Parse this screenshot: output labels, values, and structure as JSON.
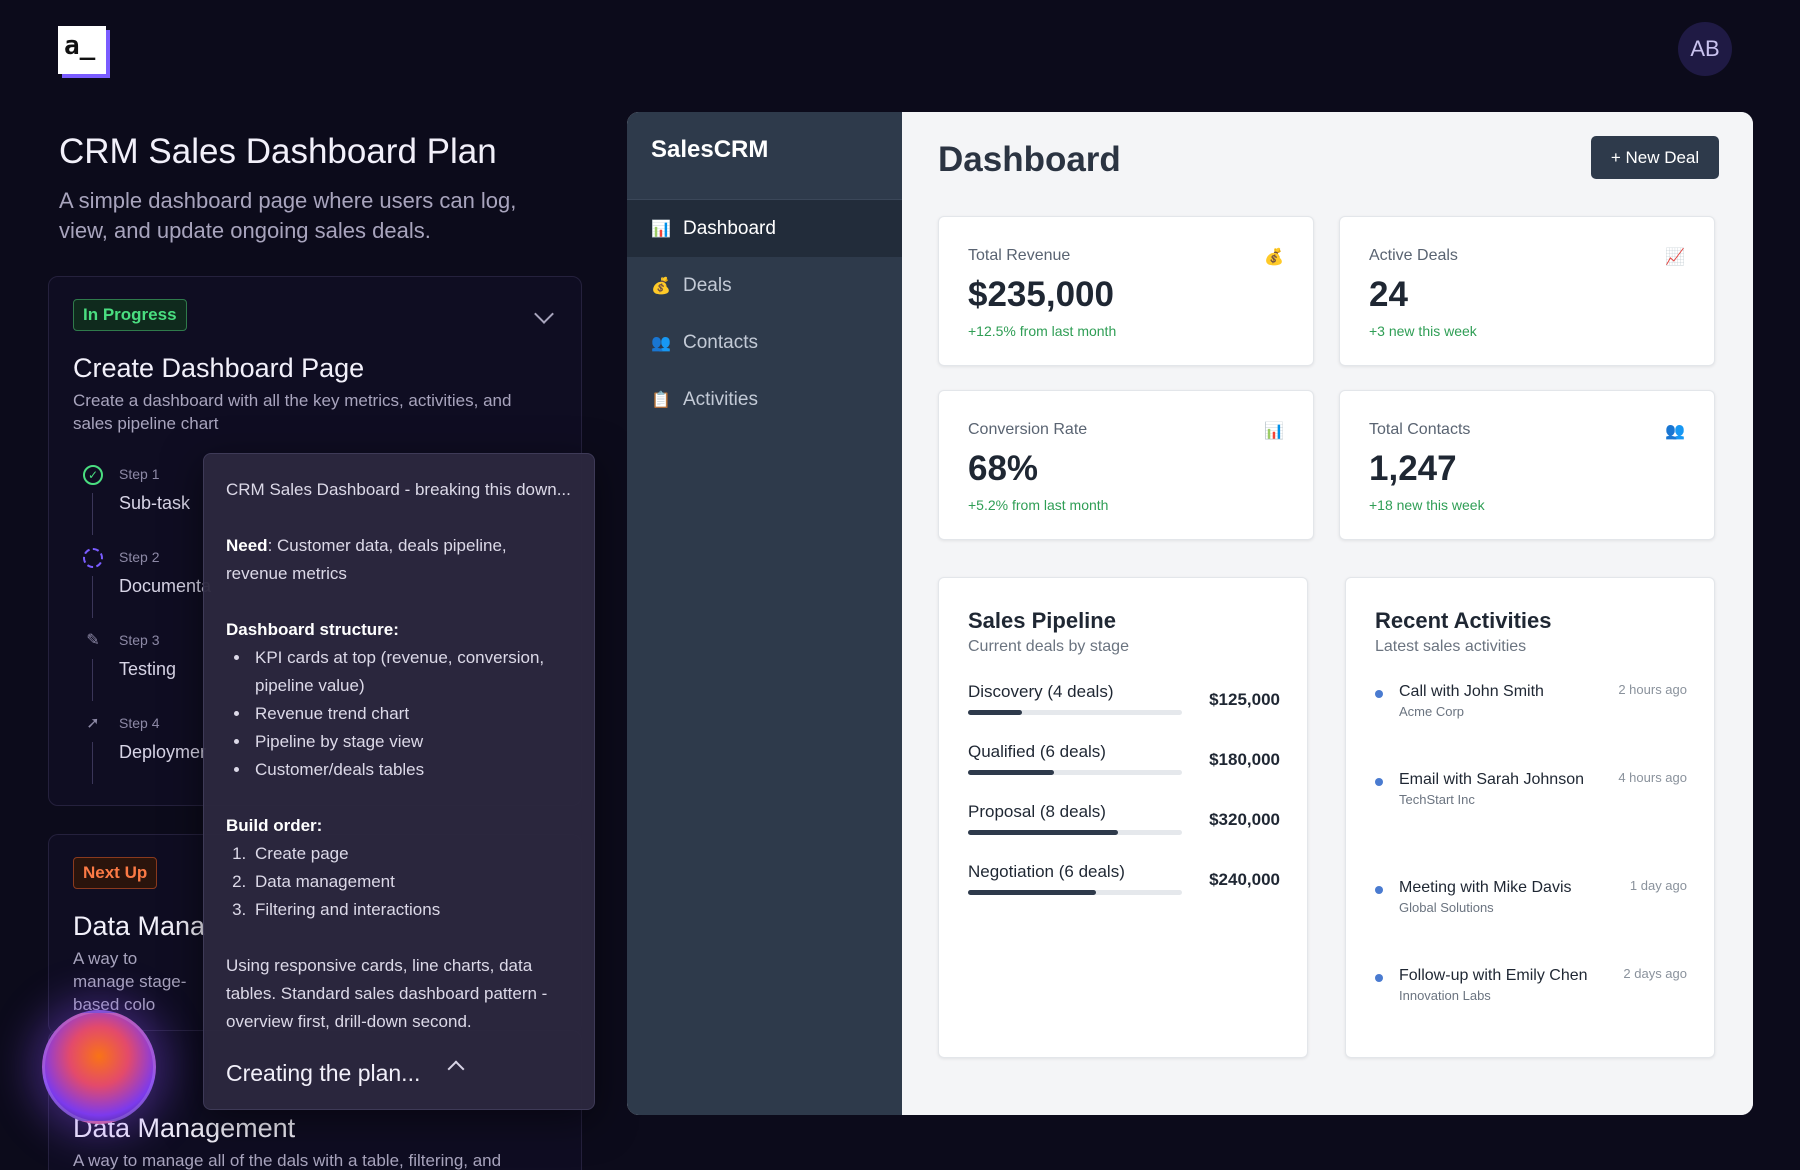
{
  "topbar": {
    "logo": "a_",
    "avatar_initials": "AB"
  },
  "plan": {
    "title": "CRM Sales Dashboard Plan",
    "subtitle": "A simple dashboard page where users can log, view, and update ongoing sales deals.",
    "task1": {
      "badge": "In Progress",
      "title": "Create Dashboard Page",
      "description": "Create a dashboard with all the key metrics, activities, and sales pipeline chart",
      "steps": [
        {
          "label": "Step 1",
          "name": "Sub-task"
        },
        {
          "label": "Step 2",
          "name": "Documenta"
        },
        {
          "label": "Step 3",
          "name": "Testing"
        },
        {
          "label": "Step 4",
          "name": "Deploymer"
        }
      ]
    },
    "task2": {
      "badge": "Next Up",
      "title": "Data Mana",
      "description": "A way to manage stage-based colo"
    },
    "task3": {
      "title": "Data Management",
      "description": "A way to manage all of the dals with a table, filtering, and"
    }
  },
  "thinking": {
    "intro": "CRM Sales Dashboard - breaking this down...",
    "need_label": "Need",
    "need_text": ": Customer data, deals pipeline, revenue metrics",
    "structure_label": "Dashboard structure:",
    "structure_items": [
      "KPI cards at top (revenue, conversion, pipeline value)",
      "Revenue trend chart",
      "Pipeline by stage view",
      "Customer/deals tables"
    ],
    "build_label": "Build order:",
    "build_items": [
      "Create page",
      "Data management",
      "Filtering and interactions"
    ],
    "closing": "Using responsive cards, line charts, data tables. Standard sales dashboard pattern - overview first, drill-down second.",
    "status": "Creating the plan..."
  },
  "crm": {
    "brand": "SalesCRM",
    "nav": [
      {
        "label": "Dashboard",
        "icon": "📊"
      },
      {
        "label": "Deals",
        "icon": "💰"
      },
      {
        "label": "Contacts",
        "icon": "👥"
      },
      {
        "label": "Activities",
        "icon": "📋"
      }
    ],
    "page_title": "Dashboard",
    "new_deal": "+ New Deal",
    "kpis": [
      {
        "label": "Total Revenue",
        "icon": "💰",
        "value": "$235,000",
        "change": "+12.5% from last month"
      },
      {
        "label": "Active Deals",
        "icon": "📈",
        "value": "24",
        "change": "+3 new this week"
      },
      {
        "label": "Conversion Rate",
        "icon": "📊",
        "value": "68%",
        "change": "+5.2% from last month"
      },
      {
        "label": "Total Contacts",
        "icon": "👥",
        "value": "1,247",
        "change": "+18 new this week"
      }
    ],
    "pipeline": {
      "title": "Sales Pipeline",
      "subtitle": "Current deals by stage",
      "stages": [
        {
          "name": "Discovery (4 deals)",
          "value": "$125,000",
          "progress": 0.25
        },
        {
          "name": "Qualified (6 deals)",
          "value": "$180,000",
          "progress": 0.4
        },
        {
          "name": "Proposal (8 deals)",
          "value": "$320,000",
          "progress": 0.7
        },
        {
          "name": "Negotiation (6 deals)",
          "value": "$240,000",
          "progress": 0.6
        }
      ]
    },
    "activities": {
      "title": "Recent Activities",
      "subtitle": "Latest sales activities",
      "items": [
        {
          "title": "Call with John Smith",
          "org": "Acme Corp",
          "time": "2 hours ago"
        },
        {
          "title": "Email with Sarah Johnson",
          "org": "TechStart Inc",
          "time": "4 hours ago"
        },
        {
          "title": "Meeting with Mike Davis",
          "org": "Global Solutions",
          "time": "1 day ago"
        },
        {
          "title": "Follow-up with Emily Chen",
          "org": "Innovation Labs",
          "time": "2 days ago"
        }
      ]
    }
  }
}
